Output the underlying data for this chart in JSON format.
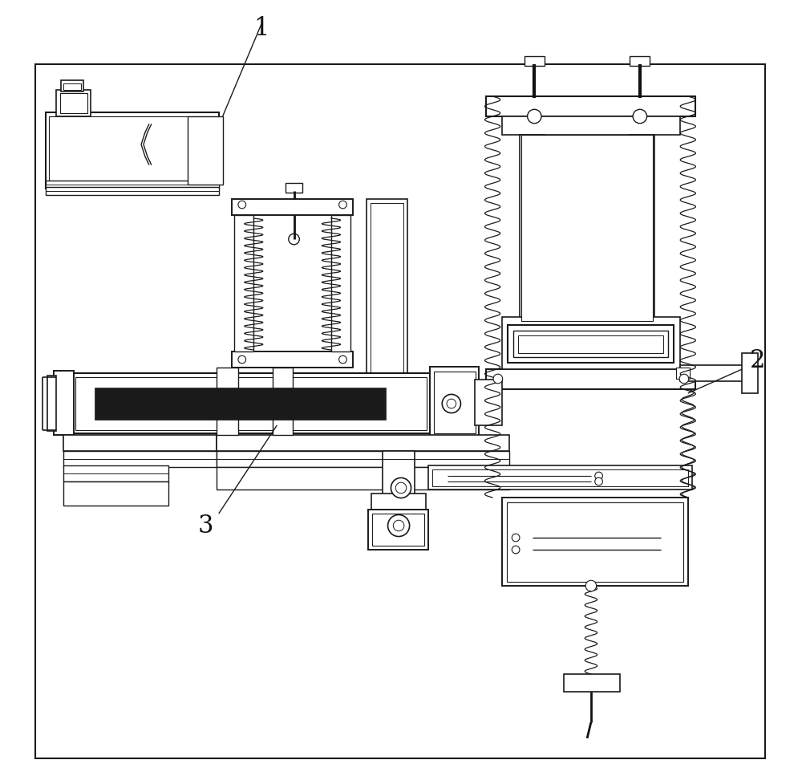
{
  "bg_color": "#ffffff",
  "lc": "#1a1a1a",
  "dc": "#111111",
  "figsize": [
    10.0,
    9.67
  ],
  "dpi": 100
}
